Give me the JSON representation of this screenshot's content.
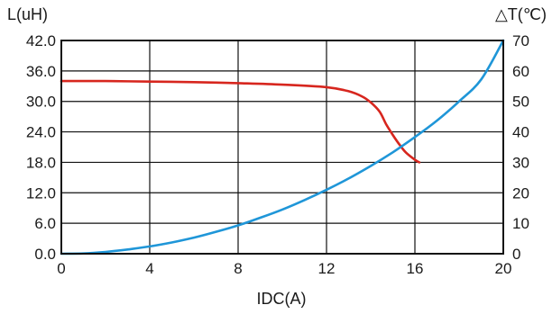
{
  "chart_data": {
    "type": "line",
    "xlabel": "IDC(A)",
    "ylabel_left": "L(uH)",
    "ylabel_right": "△T(℃)",
    "xlim": [
      0,
      20
    ],
    "ylim_left": [
      0,
      42
    ],
    "ylim_right": [
      0,
      70
    ],
    "x_ticks": [
      "0",
      "4",
      "8",
      "12",
      "16",
      "20"
    ],
    "y_left_ticks": [
      "0.0",
      "6.0",
      "12.0",
      "18.0",
      "24.0",
      "30.0",
      "36.0",
      "42.0"
    ],
    "y_right_ticks": [
      "0",
      "10",
      "20",
      "30",
      "40",
      "50",
      "60",
      "70"
    ],
    "grid": true,
    "series": [
      {
        "axis": "left",
        "color": "#d7261e",
        "x": [
          0,
          2,
          4,
          6,
          8,
          10,
          12,
          13,
          13.6,
          14,
          14.4,
          14.7,
          15,
          15.3,
          15.6,
          16,
          16.2
        ],
        "y": [
          34.0,
          34.0,
          33.9,
          33.8,
          33.6,
          33.3,
          32.8,
          32.0,
          31.0,
          29.8,
          28.0,
          25.5,
          23.4,
          21.5,
          19.9,
          18.5,
          18.0
        ]
      },
      {
        "axis": "right",
        "color": "#1f96d8",
        "x": [
          0,
          1,
          2,
          3,
          4,
          5,
          6,
          7,
          8,
          9,
          10,
          11,
          12,
          13,
          14,
          15,
          16,
          17,
          18,
          19,
          20
        ],
        "y": [
          0,
          0.1,
          0.6,
          1.4,
          2.4,
          3.7,
          5.3,
          7.2,
          9.3,
          11.8,
          14.5,
          17.6,
          21.0,
          24.7,
          28.8,
          33.3,
          38.3,
          43.7,
          50.0,
          57.2,
          70.0
        ]
      }
    ]
  }
}
